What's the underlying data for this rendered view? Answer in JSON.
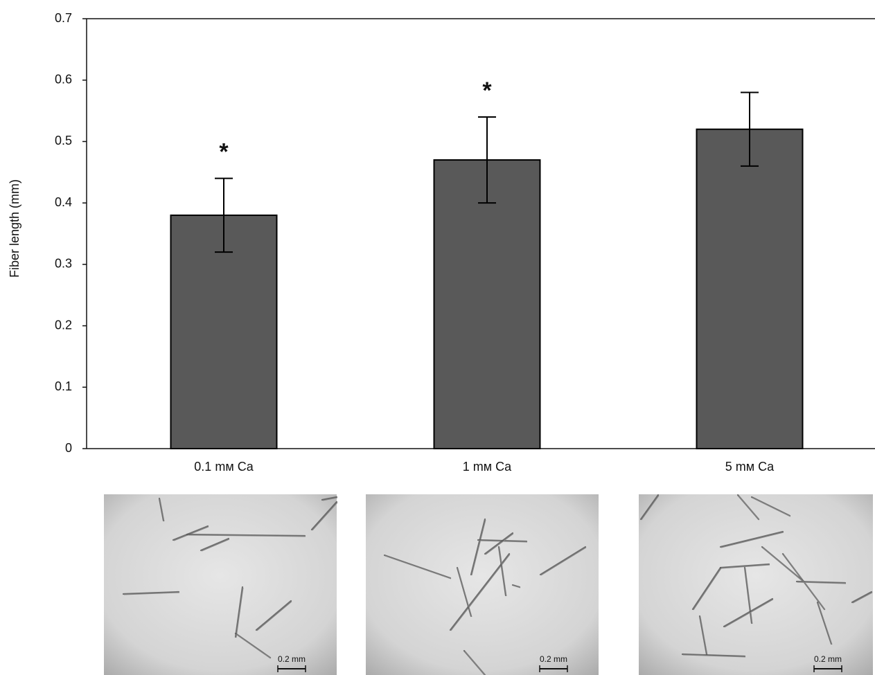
{
  "chart_data": {
    "type": "bar",
    "y_label": "Fiber length (mm)",
    "categories": [
      "0.1 mм Ca",
      "1 mм Ca",
      "5 mм Ca"
    ],
    "values": [
      0.38,
      0.47,
      0.52
    ],
    "errors": [
      0.06,
      0.07,
      0.06
    ],
    "significance": [
      "*",
      "*",
      null
    ],
    "color": "#595959",
    "ylim": [
      0,
      0.7
    ],
    "yticks": [
      0,
      0.1,
      0.2,
      0.3,
      0.4,
      0.5,
      0.6,
      0.7
    ],
    "scale_labels": [
      "0.2 mm",
      "0.2 mm",
      "0.2 mm"
    ]
  }
}
